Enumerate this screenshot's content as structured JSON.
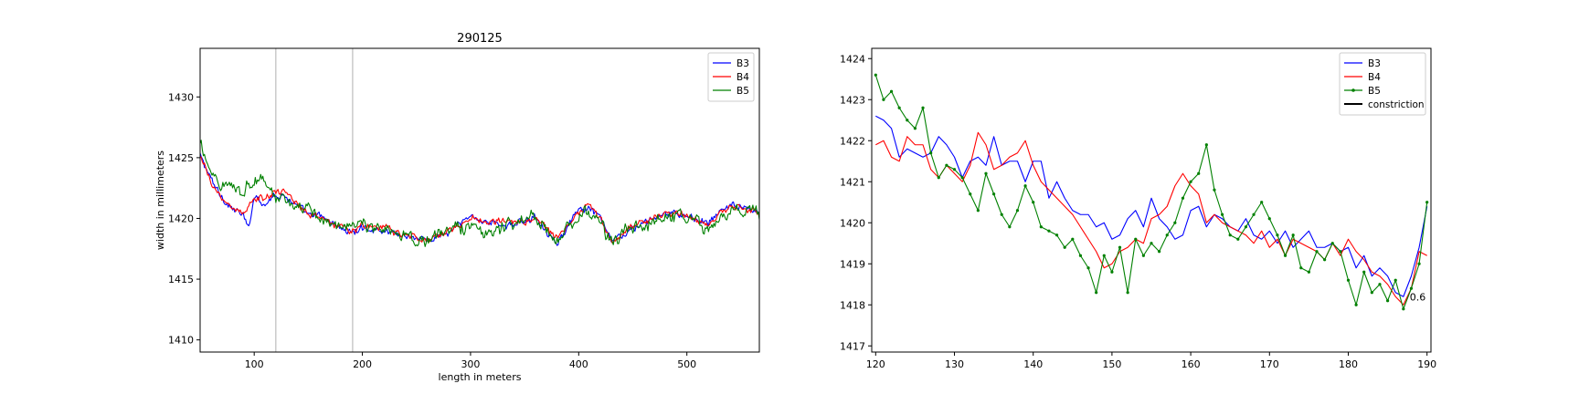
{
  "chart_data": [
    {
      "type": "line",
      "title": "290125",
      "xlabel": "length in meters",
      "ylabel": "width in millimeters",
      "xlim": [
        50,
        567
      ],
      "ylim": [
        1409,
        1434
      ],
      "xticks": [
        100,
        200,
        300,
        400,
        500
      ],
      "yticks": [
        1410,
        1415,
        1420,
        1425,
        1430
      ],
      "xtick_labels": [
        "100",
        "200",
        "300",
        "400",
        "500"
      ],
      "ytick_labels": [
        "1410",
        "1415",
        "1420",
        "1425",
        "1430"
      ],
      "grid": false,
      "legend": "top-right",
      "vlines": [
        120,
        191
      ],
      "vline_color": "#b0b0b0",
      "series": [
        {
          "name": "B3",
          "color": "#0000ff",
          "anchors": [
            [
              50,
              1425.2
            ],
            [
              60,
              1423.2
            ],
            [
              70,
              1421.8
            ],
            [
              80,
              1420.8
            ],
            [
              90,
              1420.2
            ],
            [
              95,
              1419.0
            ],
            [
              100,
              1422.0
            ],
            [
              110,
              1421.2
            ],
            [
              120,
              1422.0
            ],
            [
              130,
              1421.8
            ],
            [
              140,
              1421.0
            ],
            [
              150,
              1420.2
            ],
            [
              160,
              1420.2
            ],
            [
              170,
              1419.8
            ],
            [
              180,
              1419.2
            ],
            [
              190,
              1418.8
            ],
            [
              200,
              1419.2
            ],
            [
              220,
              1419.0
            ],
            [
              240,
              1418.6
            ],
            [
              260,
              1418.2
            ],
            [
              280,
              1418.8
            ],
            [
              300,
              1420.2
            ],
            [
              320,
              1419.6
            ],
            [
              340,
              1419.4
            ],
            [
              360,
              1420.2
            ],
            [
              380,
              1418.0
            ],
            [
              400,
              1420.6
            ],
            [
              410,
              1420.8
            ],
            [
              420,
              1420.0
            ],
            [
              430,
              1418.2
            ],
            [
              440,
              1418.6
            ],
            [
              460,
              1419.6
            ],
            [
              480,
              1420.4
            ],
            [
              500,
              1420.2
            ],
            [
              520,
              1419.6
            ],
            [
              540,
              1421.2
            ],
            [
              560,
              1420.6
            ],
            [
              567,
              1420.4
            ]
          ],
          "noise": 0.45
        },
        {
          "name": "B4",
          "color": "#ff0000",
          "anchors": [
            [
              50,
              1425.0
            ],
            [
              60,
              1423.0
            ],
            [
              70,
              1421.6
            ],
            [
              80,
              1420.9
            ],
            [
              90,
              1420.4
            ],
            [
              100,
              1421.6
            ],
            [
              110,
              1421.6
            ],
            [
              120,
              1422.2
            ],
            [
              130,
              1422.0
            ],
            [
              140,
              1421.2
            ],
            [
              150,
              1420.4
            ],
            [
              160,
              1420.2
            ],
            [
              170,
              1419.6
            ],
            [
              180,
              1419.4
            ],
            [
              190,
              1418.9
            ],
            [
              200,
              1419.4
            ],
            [
              220,
              1419.2
            ],
            [
              240,
              1418.6
            ],
            [
              260,
              1418.2
            ],
            [
              280,
              1419.0
            ],
            [
              300,
              1420.0
            ],
            [
              320,
              1419.8
            ],
            [
              340,
              1419.6
            ],
            [
              360,
              1420.0
            ],
            [
              380,
              1418.4
            ],
            [
              400,
              1420.6
            ],
            [
              410,
              1421.0
            ],
            [
              420,
              1420.0
            ],
            [
              430,
              1418.0
            ],
            [
              440,
              1418.8
            ],
            [
              460,
              1419.8
            ],
            [
              480,
              1420.4
            ],
            [
              500,
              1420.2
            ],
            [
              520,
              1419.4
            ],
            [
              540,
              1421.0
            ],
            [
              560,
              1420.8
            ],
            [
              567,
              1420.2
            ]
          ],
          "noise": 0.45
        },
        {
          "name": "B5",
          "color": "#008000",
          "anchors": [
            [
              50,
              1426.0
            ],
            [
              60,
              1424.0
            ],
            [
              70,
              1422.8
            ],
            [
              80,
              1422.8
            ],
            [
              90,
              1422.4
            ],
            [
              100,
              1423.2
            ],
            [
              110,
              1423.0
            ],
            [
              120,
              1421.8
            ],
            [
              130,
              1421.6
            ],
            [
              140,
              1420.6
            ],
            [
              150,
              1420.6
            ],
            [
              160,
              1420.0
            ],
            [
              170,
              1419.8
            ],
            [
              180,
              1419.4
            ],
            [
              190,
              1419.6
            ],
            [
              200,
              1419.4
            ],
            [
              220,
              1419.0
            ],
            [
              240,
              1418.8
            ],
            [
              260,
              1418.0
            ],
            [
              280,
              1419.2
            ],
            [
              300,
              1419.4
            ],
            [
              320,
              1418.8
            ],
            [
              340,
              1419.8
            ],
            [
              360,
              1420.0
            ],
            [
              380,
              1418.0
            ],
            [
              400,
              1420.2
            ],
            [
              410,
              1420.4
            ],
            [
              420,
              1419.8
            ],
            [
              430,
              1417.8
            ],
            [
              440,
              1418.8
            ],
            [
              460,
              1419.4
            ],
            [
              480,
              1420.0
            ],
            [
              500,
              1420.0
            ],
            [
              520,
              1419.2
            ],
            [
              540,
              1420.6
            ],
            [
              560,
              1420.8
            ],
            [
              567,
              1420.4
            ]
          ],
          "noise": 0.8
        }
      ]
    },
    {
      "type": "line",
      "title": "",
      "xlabel": "",
      "ylabel": "",
      "xlim": [
        119.5,
        190.5
      ],
      "ylim": [
        1416.85,
        1424.25
      ],
      "xticks": [
        120,
        130,
        140,
        150,
        160,
        170,
        180,
        190
      ],
      "yticks": [
        1417,
        1418,
        1419,
        1420,
        1421,
        1422,
        1423,
        1424
      ],
      "xtick_labels": [
        "120",
        "130",
        "140",
        "150",
        "160",
        "170",
        "180",
        "190"
      ],
      "ytick_labels": [
        "1417",
        "1418",
        "1419",
        "1420",
        "1421",
        "1422",
        "1423",
        "1424"
      ],
      "grid": false,
      "legend": "top-right",
      "annotation": {
        "text": "0.6",
        "x": 187.8,
        "y": 1418.2
      },
      "series": [
        {
          "name": "B3",
          "color": "#0000ff",
          "marker": "none",
          "x": [
            120,
            121,
            122,
            123,
            124,
            125,
            126,
            127,
            128,
            129,
            130,
            131,
            132,
            133,
            134,
            135,
            136,
            137,
            138,
            139,
            140,
            141,
            142,
            143,
            144,
            145,
            146,
            147,
            148,
            149,
            150,
            151,
            152,
            153,
            154,
            155,
            156,
            157,
            158,
            159,
            160,
            161,
            162,
            163,
            164,
            165,
            166,
            167,
            168,
            169,
            170,
            171,
            172,
            173,
            174,
            175,
            176,
            177,
            178,
            179,
            180,
            181,
            182,
            183,
            184,
            185,
            186,
            187,
            188,
            189,
            190
          ],
          "y": [
            1422.6,
            1422.5,
            1422.3,
            1421.6,
            1421.8,
            1421.7,
            1421.6,
            1421.7,
            1422.1,
            1421.9,
            1421.6,
            1421.1,
            1421.5,
            1421.6,
            1421.4,
            1422.1,
            1421.4,
            1421.5,
            1421.5,
            1421.0,
            1421.5,
            1421.5,
            1420.6,
            1421.0,
            1420.6,
            1420.3,
            1420.2,
            1420.2,
            1419.9,
            1420.0,
            1419.6,
            1419.7,
            1420.1,
            1420.3,
            1419.9,
            1420.6,
            1420.1,
            1419.9,
            1419.6,
            1419.7,
            1420.3,
            1420.4,
            1419.9,
            1420.2,
            1420.1,
            1419.9,
            1419.8,
            1420.1,
            1419.7,
            1419.6,
            1419.8,
            1419.5,
            1419.8,
            1419.4,
            1419.6,
            1419.8,
            1419.4,
            1419.4,
            1419.5,
            1419.3,
            1419.4,
            1418.9,
            1419.2,
            1418.7,
            1418.9,
            1418.7,
            1418.3,
            1418.2,
            1418.7,
            1419.4,
            1420.4
          ]
        },
        {
          "name": "B4",
          "color": "#ff0000",
          "marker": "none",
          "x": [
            120,
            121,
            122,
            123,
            124,
            125,
            126,
            127,
            128,
            129,
            130,
            131,
            132,
            133,
            134,
            135,
            136,
            137,
            138,
            139,
            140,
            141,
            142,
            143,
            144,
            145,
            146,
            147,
            148,
            149,
            150,
            151,
            152,
            153,
            154,
            155,
            156,
            157,
            158,
            159,
            160,
            161,
            162,
            163,
            164,
            165,
            166,
            167,
            168,
            169,
            170,
            171,
            172,
            173,
            174,
            175,
            176,
            177,
            178,
            179,
            180,
            181,
            182,
            183,
            184,
            185,
            186,
            187,
            188,
            189,
            190
          ],
          "y": [
            1421.9,
            1422.0,
            1421.6,
            1421.5,
            1422.1,
            1421.9,
            1421.9,
            1421.3,
            1421.1,
            1421.4,
            1421.2,
            1421.0,
            1421.4,
            1422.2,
            1421.9,
            1421.3,
            1421.4,
            1421.6,
            1421.7,
            1422.0,
            1421.4,
            1421.0,
            1420.8,
            1420.6,
            1420.4,
            1420.2,
            1419.9,
            1419.6,
            1419.3,
            1418.9,
            1419.0,
            1419.3,
            1419.4,
            1419.6,
            1419.5,
            1420.1,
            1420.2,
            1420.4,
            1420.9,
            1421.2,
            1420.9,
            1420.7,
            1420.0,
            1420.2,
            1420.0,
            1419.9,
            1419.8,
            1419.7,
            1419.5,
            1419.8,
            1419.4,
            1419.6,
            1419.2,
            1419.6,
            1419.5,
            1419.4,
            1419.3,
            1419.1,
            1419.5,
            1419.2,
            1419.6,
            1419.3,
            1419.1,
            1418.8,
            1418.7,
            1418.5,
            1418.2,
            1418.0,
            1418.4,
            1419.3,
            1419.2
          ]
        },
        {
          "name": "B5",
          "color": "#008000",
          "marker": "dot",
          "x": [
            120,
            121,
            122,
            123,
            124,
            125,
            126,
            127,
            128,
            129,
            130,
            131,
            132,
            133,
            134,
            135,
            136,
            137,
            138,
            139,
            140,
            141,
            142,
            143,
            144,
            145,
            146,
            147,
            148,
            149,
            150,
            151,
            152,
            153,
            154,
            155,
            156,
            157,
            158,
            159,
            160,
            161,
            162,
            163,
            164,
            165,
            166,
            167,
            168,
            169,
            170,
            171,
            172,
            173,
            174,
            175,
            176,
            177,
            178,
            179,
            180,
            181,
            182,
            183,
            184,
            185,
            186,
            187,
            188,
            189,
            190
          ],
          "y": [
            1423.6,
            1423.0,
            1423.2,
            1422.8,
            1422.5,
            1422.3,
            1422.8,
            1421.7,
            1421.1,
            1421.4,
            1421.3,
            1421.1,
            1420.7,
            1420.3,
            1421.2,
            1420.7,
            1420.2,
            1419.9,
            1420.3,
            1420.9,
            1420.5,
            1419.9,
            1419.8,
            1419.7,
            1419.4,
            1419.6,
            1419.2,
            1418.9,
            1418.3,
            1419.2,
            1418.8,
            1419.4,
            1418.3,
            1419.6,
            1419.2,
            1419.5,
            1419.3,
            1419.7,
            1420.0,
            1420.6,
            1421.0,
            1421.2,
            1421.9,
            1420.8,
            1420.2,
            1419.7,
            1419.6,
            1419.9,
            1420.2,
            1420.5,
            1420.1,
            1419.7,
            1419.2,
            1419.7,
            1418.9,
            1418.8,
            1419.3,
            1419.1,
            1419.5,
            1419.3,
            1418.6,
            1418.0,
            1418.8,
            1418.3,
            1418.5,
            1418.1,
            1418.6,
            1417.9,
            1418.4,
            1419.0,
            1420.5
          ]
        },
        {
          "name": "constriction",
          "color": "#000000",
          "marker": "none",
          "x": [
            187
          ],
          "y": [
            1418.2
          ]
        }
      ]
    }
  ]
}
